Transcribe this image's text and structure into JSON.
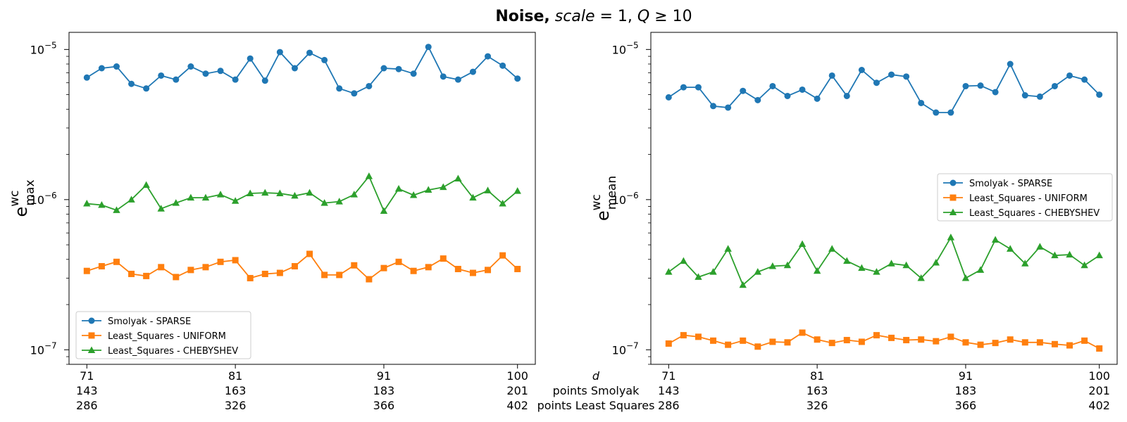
{
  "title": {
    "bold": "Noise,",
    "italic": "scale",
    "eq1": "= 1,",
    "q": "Q",
    "eq2": "≥ 10"
  },
  "row_labels": [
    "d",
    "points Smolyak",
    "points Least Squares"
  ],
  "chart_data": [
    {
      "type": "line",
      "ylabel": "e",
      "ylabel_sup": "wc",
      "ylabel_sub": "max",
      "yscale": "log",
      "ylim": [
        8e-08,
        1.3e-05
      ],
      "xlim": [
        69.8,
        101.2
      ],
      "xticks": [
        {
          "d": "71",
          "smolyak": "143",
          "ls": "286"
        },
        {
          "d": "81",
          "smolyak": "163",
          "ls": "326"
        },
        {
          "d": "91",
          "smolyak": "183",
          "ls": "366"
        },
        {
          "d": "100",
          "smolyak": "201",
          "ls": "402"
        }
      ],
      "yticks": [
        {
          "base": "10",
          "exp": "−5",
          "value": 1e-05
        },
        {
          "base": "10",
          "exp": "−6",
          "value": 1e-06
        },
        {
          "base": "10",
          "exp": "−7",
          "value": 1e-07
        }
      ],
      "legend_loc": "lower-left",
      "x": [
        71,
        72,
        73,
        74,
        75,
        76,
        77,
        78,
        79,
        80,
        81,
        82,
        83,
        84,
        85,
        86,
        87,
        88,
        89,
        90,
        91,
        92,
        93,
        94,
        95,
        96,
        97,
        98,
        99,
        100
      ],
      "series": [
        {
          "name": "Smolyak - SPARSE",
          "color": "#1f77b4",
          "marker": "circle",
          "values": [
            6.5e-06,
            7.5e-06,
            7.7e-06,
            5.9e-06,
            5.5e-06,
            6.7e-06,
            6.3e-06,
            7.7e-06,
            6.9e-06,
            7.2e-06,
            6.3e-06,
            8.7e-06,
            6.2e-06,
            9.6e-06,
            7.5e-06,
            9.5e-06,
            8.5e-06,
            5.5e-06,
            5.1e-06,
            5.7e-06,
            7.5e-06,
            7.4e-06,
            6.9e-06,
            1.04e-05,
            6.6e-06,
            6.3e-06,
            7.1e-06,
            9e-06,
            7.8e-06,
            6.4e-06
          ]
        },
        {
          "name": "Least_Squares - UNIFORM",
          "color": "#ff7f0e",
          "marker": "square",
          "values": [
            3.35e-07,
            3.6e-07,
            3.85e-07,
            3.2e-07,
            3.1e-07,
            3.55e-07,
            3.05e-07,
            3.4e-07,
            3.55e-07,
            3.85e-07,
            3.95e-07,
            3e-07,
            3.2e-07,
            3.25e-07,
            3.6e-07,
            4.35e-07,
            3.15e-07,
            3.15e-07,
            3.65e-07,
            2.95e-07,
            3.5e-07,
            3.85e-07,
            3.35e-07,
            3.55e-07,
            4.05e-07,
            3.45e-07,
            3.25e-07,
            3.4e-07,
            4.25e-07,
            3.45e-07
          ]
        },
        {
          "name": "Least_Squares - CHEBYSHEV",
          "color": "#2ca02c",
          "marker": "triangle",
          "values": [
            9.4e-07,
            9.2e-07,
            8.5e-07,
            1e-06,
            1.25e-06,
            8.7e-07,
            9.5e-07,
            1.03e-06,
            1.03e-06,
            1.08e-06,
            9.8e-07,
            1.1e-06,
            1.11e-06,
            1.1e-06,
            1.06e-06,
            1.11e-06,
            9.5e-07,
            9.7e-07,
            1.08e-06,
            1.43e-06,
            8.4e-07,
            1.18e-06,
            1.07e-06,
            1.16e-06,
            1.21e-06,
            1.38e-06,
            1.03e-06,
            1.15e-06,
            9.4e-07,
            1.14e-06
          ]
        }
      ]
    },
    {
      "type": "line",
      "ylabel": "e",
      "ylabel_sup": "wc",
      "ylabel_sub": "mean",
      "yscale": "log",
      "ylim": [
        8e-08,
        1.3e-05
      ],
      "xlim": [
        69.8,
        101.2
      ],
      "xticks": [
        {
          "d": "71",
          "smolyak": "143",
          "ls": "286"
        },
        {
          "d": "81",
          "smolyak": "163",
          "ls": "326"
        },
        {
          "d": "91",
          "smolyak": "183",
          "ls": "366"
        },
        {
          "d": "100",
          "smolyak": "201",
          "ls": "402"
        }
      ],
      "yticks": [
        {
          "base": "10",
          "exp": "−5",
          "value": 1e-05
        },
        {
          "base": "10",
          "exp": "−6",
          "value": 1e-06
        },
        {
          "base": "10",
          "exp": "−7",
          "value": 1e-07
        }
      ],
      "legend_loc": "center-right",
      "x": [
        71,
        72,
        73,
        74,
        75,
        76,
        77,
        78,
        79,
        80,
        81,
        82,
        83,
        84,
        85,
        86,
        87,
        88,
        89,
        90,
        91,
        92,
        93,
        94,
        95,
        96,
        97,
        98,
        99,
        100
      ],
      "series": [
        {
          "name": "Smolyak - SPARSE",
          "color": "#1f77b4",
          "marker": "circle",
          "values": [
            4.8e-06,
            5.6e-06,
            5.6e-06,
            4.2e-06,
            4.1e-06,
            5.3e-06,
            4.6e-06,
            5.7e-06,
            4.9e-06,
            5.4e-06,
            4.7e-06,
            6.7e-06,
            4.9e-06,
            7.3e-06,
            6e-06,
            6.8e-06,
            6.6e-06,
            4.4e-06,
            3.8e-06,
            3.8e-06,
            5.7e-06,
            5.75e-06,
            5.2e-06,
            8e-06,
            4.95e-06,
            4.85e-06,
            5.7e-06,
            6.7e-06,
            6.3e-06,
            5e-06
          ]
        },
        {
          "name": "Least_Squares - UNIFORM",
          "color": "#ff7f0e",
          "marker": "square",
          "values": [
            1.1e-07,
            1.25e-07,
            1.22e-07,
            1.15e-07,
            1.08e-07,
            1.15e-07,
            1.05e-07,
            1.13e-07,
            1.12e-07,
            1.3e-07,
            1.17e-07,
            1.11e-07,
            1.16e-07,
            1.13e-07,
            1.25e-07,
            1.2e-07,
            1.16e-07,
            1.17e-07,
            1.14e-07,
            1.22e-07,
            1.12e-07,
            1.08e-07,
            1.11e-07,
            1.17e-07,
            1.12e-07,
            1.12e-07,
            1.09e-07,
            1.07e-07,
            1.15e-07,
            1.02e-07
          ]
        },
        {
          "name": "Least_Squares - CHEBYSHEV",
          "color": "#2ca02c",
          "marker": "triangle",
          "values": [
            3.3e-07,
            3.9e-07,
            3.05e-07,
            3.3e-07,
            4.7e-07,
            2.7e-07,
            3.3e-07,
            3.6e-07,
            3.65e-07,
            5.05e-07,
            3.35e-07,
            4.7e-07,
            3.9e-07,
            3.5e-07,
            3.3e-07,
            3.75e-07,
            3.65e-07,
            3e-07,
            3.8e-07,
            5.6e-07,
            3e-07,
            3.4e-07,
            5.4e-07,
            4.7e-07,
            3.75e-07,
            4.85e-07,
            4.25e-07,
            4.3e-07,
            3.65e-07,
            4.25e-07
          ]
        }
      ]
    }
  ]
}
